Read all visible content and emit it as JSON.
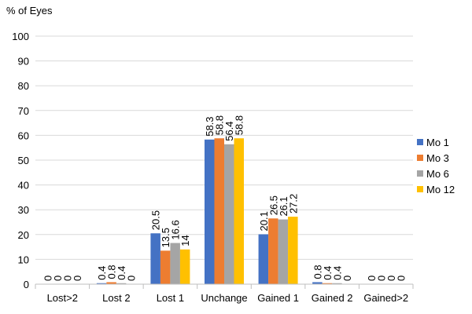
{
  "chart_data": {
    "type": "bar",
    "title": "",
    "ylabel": "% of Eyes",
    "xlabel": "",
    "ylim": [
      0,
      100
    ],
    "yticks": [
      0,
      10,
      20,
      30,
      40,
      50,
      60,
      70,
      80,
      90,
      100
    ],
    "grid": true,
    "legend_position": "right",
    "categories": [
      "Lost>2",
      "Lost 2",
      "Lost 1",
      "Unchange",
      "Gained 1",
      "Gained 2",
      "Gained>2"
    ],
    "series": [
      {
        "name": "Mo 1",
        "color": "#4472C4",
        "values": [
          0,
          0.4,
          20.5,
          58.3,
          20.1,
          0.8,
          0
        ]
      },
      {
        "name": "Mo 3",
        "color": "#ED7D31",
        "values": [
          0,
          0.8,
          13.5,
          58.8,
          26.5,
          0.4,
          0
        ]
      },
      {
        "name": "Mo 6",
        "color": "#A5A5A5",
        "values": [
          0,
          0.4,
          16.6,
          56.4,
          26.1,
          0.4,
          0
        ]
      },
      {
        "name": "Mo 12",
        "color": "#FFC000",
        "values": [
          0,
          0,
          14,
          58.8,
          27.2,
          0,
          0
        ]
      }
    ]
  }
}
